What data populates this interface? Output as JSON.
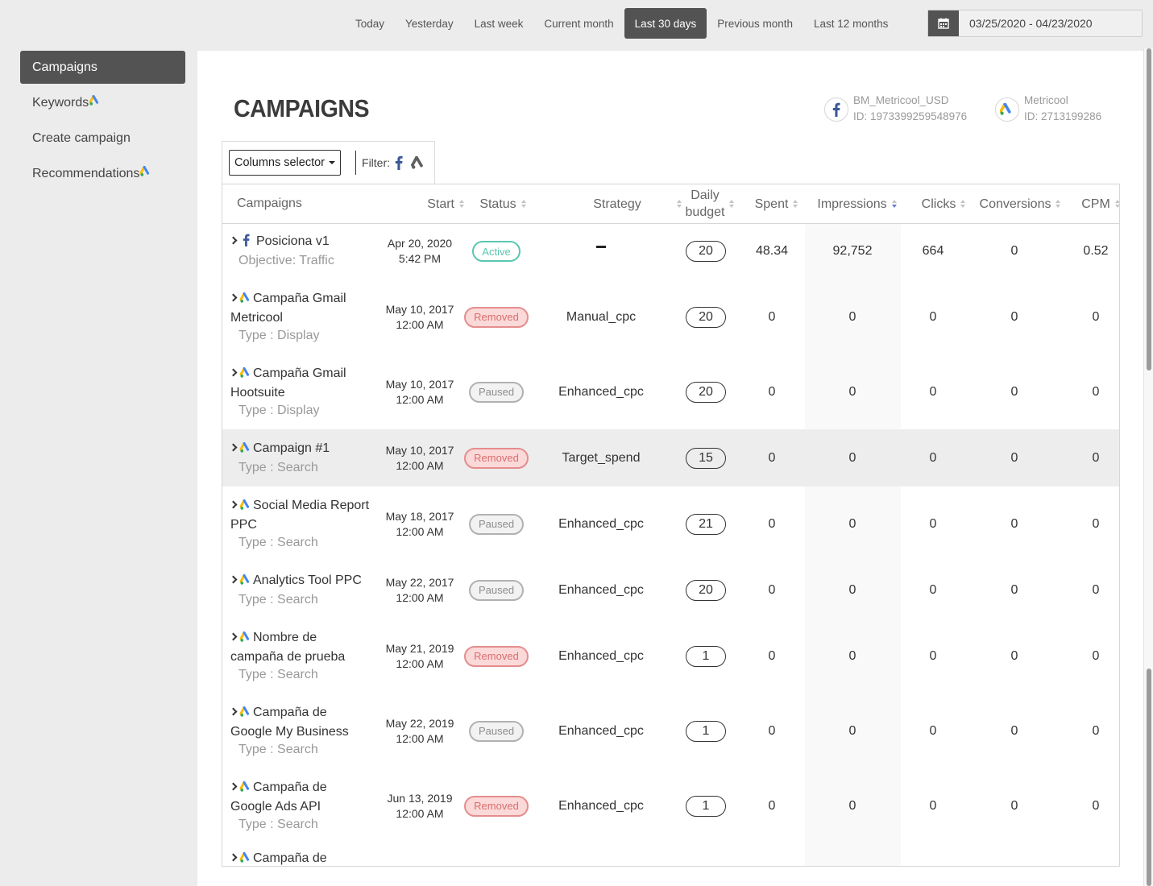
{
  "date_range": {
    "options": [
      "Today",
      "Yesterday",
      "Last week",
      "Current month",
      "Last 30 days",
      "Previous month",
      "Last 12 months"
    ],
    "active": "Last 30 days",
    "value": "03/25/2020 - 04/23/2020",
    "icon": "calendar-icon"
  },
  "sidebar": {
    "items": [
      {
        "label": "Campaigns",
        "active": true,
        "ads_icon": false
      },
      {
        "label": "Keywords",
        "active": false,
        "ads_icon": true
      },
      {
        "label": "Create campaign",
        "active": false,
        "ads_icon": false
      },
      {
        "label": "Recommendations",
        "active": false,
        "ads_icon": true
      }
    ]
  },
  "main": {
    "title": "CAMPAIGNS",
    "accounts": [
      {
        "name": "BM_Metricool_USD",
        "id_text": "ID: 1973399259548976",
        "icon": "facebook-icon"
      },
      {
        "name": "Metricool",
        "id_text": "ID: 2713199286",
        "icon": "google-ads-icon"
      }
    ],
    "toolbar": {
      "columns_selector": "Columns selector",
      "filter_label": "Filter:"
    }
  },
  "table": {
    "headers": {
      "campaigns": "Campaigns",
      "start": "Start",
      "status": "Status",
      "strategy": "Strategy",
      "daily_budget_1": "Daily",
      "daily_budget_2": "budget",
      "spent": "Spent",
      "impressions": "Impressions",
      "clicks": "Clicks",
      "conversions": "Conversions",
      "cpm": "CPM"
    },
    "rows": [
      {
        "network": "facebook",
        "name1": "Posiciona v1",
        "name2": "",
        "sub": "Objective: Traffic",
        "date": "Apr 20, 2020",
        "time": "5:42 PM",
        "status": "Active",
        "strategy": "",
        "budget": "20",
        "spent": "48.34",
        "impressions": "92,752",
        "clicks": "664",
        "conversions": "0",
        "cpm": "0.52"
      },
      {
        "network": "google",
        "name1": "Campaña Gmail",
        "name2": "Metricool",
        "sub": "Type : Display",
        "date": "May 10, 2017",
        "time": "12:00 AM",
        "status": "Removed",
        "strategy": "Manual_cpc",
        "budget": "20",
        "spent": "0",
        "impressions": "0",
        "clicks": "0",
        "conversions": "0",
        "cpm": "0"
      },
      {
        "network": "google",
        "name1": "Campaña Gmail",
        "name2": "Hootsuite",
        "sub": "Type : Display",
        "date": "May 10, 2017",
        "time": "12:00 AM",
        "status": "Paused",
        "strategy": "Enhanced_cpc",
        "budget": "20",
        "spent": "0",
        "impressions": "0",
        "clicks": "0",
        "conversions": "0",
        "cpm": "0"
      },
      {
        "network": "google",
        "name1": "Campaign #1",
        "name2": "",
        "sub": "Type : Search",
        "date": "May 10, 2017",
        "time": "12:00 AM",
        "status": "Removed",
        "strategy": "Target_spend",
        "budget": "15",
        "spent": "0",
        "impressions": "0",
        "clicks": "0",
        "conversions": "0",
        "cpm": "0"
      },
      {
        "network": "google",
        "name1": "Social Media Report",
        "name2": "PPC",
        "sub": "Type : Search",
        "date": "May 18, 2017",
        "time": "12:00 AM",
        "status": "Paused",
        "strategy": "Enhanced_cpc",
        "budget": "21",
        "spent": "0",
        "impressions": "0",
        "clicks": "0",
        "conversions": "0",
        "cpm": "0"
      },
      {
        "network": "google",
        "name1": "Analytics Tool PPC",
        "name2": "",
        "sub": "Type : Search",
        "date": "May 22, 2017",
        "time": "12:00 AM",
        "status": "Paused",
        "strategy": "Enhanced_cpc",
        "budget": "20",
        "spent": "0",
        "impressions": "0",
        "clicks": "0",
        "conversions": "0",
        "cpm": "0"
      },
      {
        "network": "google",
        "name1": "Nombre de",
        "name2": "campaña de prueba",
        "sub": "Type : Search",
        "date": "May 21, 2019",
        "time": "12:00 AM",
        "status": "Removed",
        "strategy": "Enhanced_cpc",
        "budget": "1",
        "spent": "0",
        "impressions": "0",
        "clicks": "0",
        "conversions": "0",
        "cpm": "0"
      },
      {
        "network": "google",
        "name1": "Campaña de",
        "name2": "Google My Business",
        "sub": "Type : Search",
        "date": "May 22, 2019",
        "time": "12:00 AM",
        "status": "Paused",
        "strategy": "Enhanced_cpc",
        "budget": "1",
        "spent": "0",
        "impressions": "0",
        "clicks": "0",
        "conversions": "0",
        "cpm": "0"
      },
      {
        "network": "google",
        "name1": "Campaña de",
        "name2": "Google Ads API",
        "sub": "Type : Search",
        "date": "Jun 13, 2019",
        "time": "12:00 AM",
        "status": "Removed",
        "strategy": "Enhanced_cpc",
        "budget": "1",
        "spent": "0",
        "impressions": "0",
        "clicks": "0",
        "conversions": "0",
        "cpm": "0"
      },
      {
        "network": "google",
        "name1": "Campaña de",
        "name2": "",
        "sub": "",
        "date": "",
        "time": "",
        "status": "",
        "strategy": "",
        "budget": "",
        "spent": "",
        "impressions": "",
        "clicks": "",
        "conversions": "",
        "cpm": ""
      }
    ]
  },
  "colors": {
    "active": "#59c7b0",
    "removed": "#e58d8d",
    "paused": "#b1b1b1",
    "dark": "#535353",
    "sort_active": "#6a77c7"
  }
}
